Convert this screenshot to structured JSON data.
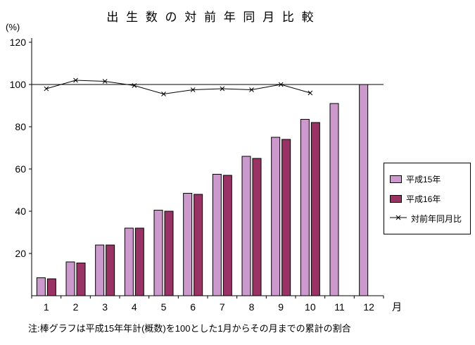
{
  "title": "出 生 数 の 対 前 年 同 月 比 較",
  "y_axis_unit": "(%)",
  "x_axis_unit": "月",
  "note": "注:棒グラフは平成15年年計(概数)を100とした1月からその月までの累計の割合",
  "chart_data": {
    "type": "bar",
    "title": "出生数の対前年同月比較",
    "xlabel": "月",
    "ylabel": "(%)",
    "categories": [
      "1",
      "2",
      "3",
      "4",
      "5",
      "6",
      "7",
      "8",
      "9",
      "10",
      "11",
      "12"
    ],
    "series": [
      {
        "name": "平成15年",
        "type": "bar",
        "color": "#cc99cc",
        "values": [
          8.5,
          16,
          24,
          32,
          40.5,
          48.5,
          57.5,
          66,
          75,
          83.5,
          91,
          100
        ]
      },
      {
        "name": "平成16年",
        "type": "bar",
        "color": "#993366",
        "values": [
          8,
          15.5,
          24,
          32,
          40,
          48,
          57,
          65,
          74,
          82,
          null,
          null
        ]
      },
      {
        "name": "対前年同月比",
        "type": "line",
        "color": "#000000",
        "marker": "x",
        "values": [
          98,
          102,
          101.5,
          99.5,
          95.5,
          97.5,
          98,
          97.5,
          100,
          96,
          null,
          null
        ]
      }
    ],
    "ylim": [
      0,
      120
    ],
    "yticks": [
      20,
      40,
      60,
      80,
      100,
      120
    ],
    "reference_line": 100,
    "grid": false,
    "legend_position": "right"
  }
}
